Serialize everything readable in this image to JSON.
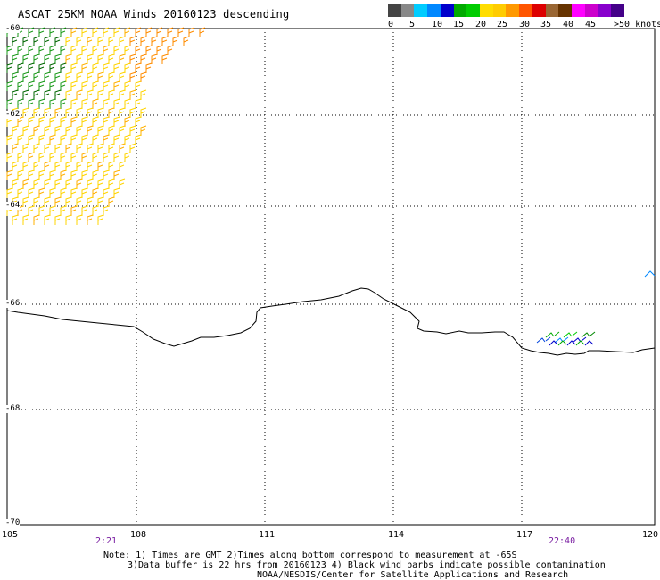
{
  "title": "ASCAT 25KM NOAA Winds 20160123 descending",
  "colorbar": {
    "colors": [
      "#444444",
      "#888888",
      "#00ccff",
      "#0088ff",
      "#0000cc",
      "#00aa00",
      "#00cc00",
      "#ffdd00",
      "#ffcc00",
      "#ff9900",
      "#ff5500",
      "#dd0000",
      "#996633",
      "#663300",
      "#ff00ff",
      "#cc00cc",
      "#8800cc",
      "#440088"
    ],
    "labels": [
      "0",
      "5",
      "10",
      "15",
      "20",
      "25",
      "30",
      "35",
      "40",
      "45",
      ">50 knots"
    ]
  },
  "axes": {
    "lon_ticks": [
      "105",
      "108",
      "111",
      "114",
      "117",
      "120"
    ],
    "lat_ticks": [
      "-60",
      "-62",
      "-64",
      "-66",
      "-68",
      "-70"
    ]
  },
  "time_labels": [
    "2:21",
    "22:40"
  ],
  "notes": {
    "line1": "Note: 1) Times are GMT 2)Times along bottom correspond to measurement at -65S",
    "line2": "3)Data buffer is 22 hrs from 20160123 4) Black wind barbs indicate possible contamination",
    "line3": "NOAA/NESDIS/Center for Satellite Applications and Research"
  }
}
